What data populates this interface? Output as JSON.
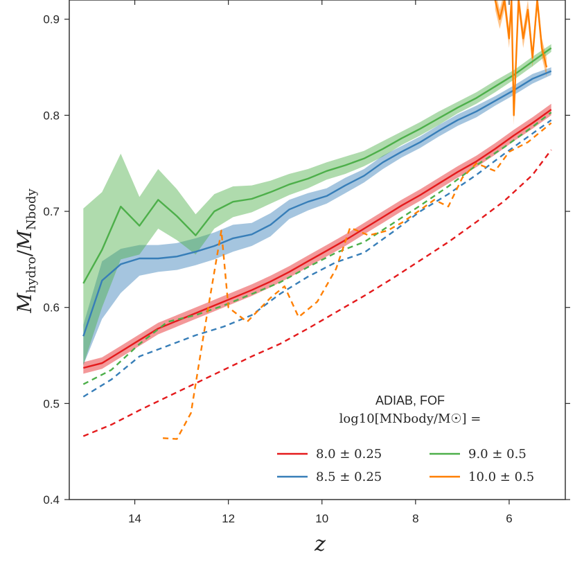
{
  "chart_data": {
    "type": "line",
    "title": "",
    "xlabel": "z",
    "ylabel_main": "M",
    "ylabel_sub1": "hydro",
    "ylabel_slash": "/",
    "ylabel_sub2": "Nbody",
    "xlim": [
      15.4,
      4.8
    ],
    "ylim": [
      0.4,
      0.92
    ],
    "xticks": [
      14,
      12,
      10,
      8,
      6
    ],
    "xtick_labels": [
      "14",
      "12",
      "10",
      "8",
      "6"
    ],
    "yticks": [
      0.4,
      0.5,
      0.6,
      0.7,
      0.8,
      0.9
    ],
    "ytick_labels": [
      "0.4",
      "0.5",
      "0.6",
      "0.7",
      "0.8",
      "0.9"
    ],
    "legend": {
      "position": "lower-right",
      "title_line1": "ADIAB, FOF",
      "title_line2": "log10[MNbody/M☉] =",
      "entries": [
        {
          "label": "8.0 ± 0.25",
          "color": "#e41a1c"
        },
        {
          "label": "9.0 ± 0.5",
          "color": "#4daf4a"
        },
        {
          "label": "8.5 ± 0.25",
          "color": "#377eb8"
        },
        {
          "label": "10.0 ± 0.5",
          "color": "#ff7f00"
        }
      ]
    },
    "series": [
      {
        "name": "8.0 ± 0.25 hydro",
        "color": "#e41a1c",
        "style": "solid",
        "band": 0.006,
        "x": [
          15.1,
          14.7,
          14.3,
          13.9,
          13.5,
          13.1,
          12.7,
          12.3,
          11.9,
          11.5,
          11.1,
          10.7,
          10.3,
          9.9,
          9.5,
          9.1,
          8.7,
          8.3,
          7.9,
          7.5,
          7.1,
          6.7,
          6.3,
          5.9,
          5.5,
          5.1
        ],
        "values": [
          0.537,
          0.542,
          0.554,
          0.566,
          0.578,
          0.586,
          0.594,
          0.602,
          0.61,
          0.618,
          0.627,
          0.637,
          0.648,
          0.659,
          0.67,
          0.682,
          0.694,
          0.706,
          0.717,
          0.729,
          0.741,
          0.752,
          0.765,
          0.779,
          0.792,
          0.806
        ]
      },
      {
        "name": "8.5 ± 0.25 hydro",
        "color": "#377eb8",
        "style": "solid",
        "band_upper": [
          0.012,
          0.02,
          0.016,
          0.014,
          0.014,
          0.014,
          0.014,
          0.014,
          0.014,
          0.012,
          0.012,
          0.01,
          0.009,
          0.008,
          0.008,
          0.007,
          0.007,
          0.006,
          0.006,
          0.006,
          0.006,
          0.006,
          0.005,
          0.005,
          0.005,
          0.004
        ],
        "band_lower": [
          0.03,
          0.04,
          0.03,
          0.018,
          0.014,
          0.014,
          0.014,
          0.014,
          0.014,
          0.012,
          0.012,
          0.01,
          0.009,
          0.008,
          0.008,
          0.007,
          0.007,
          0.006,
          0.006,
          0.006,
          0.006,
          0.006,
          0.005,
          0.005,
          0.005,
          0.004
        ],
        "x": [
          15.1,
          14.7,
          14.3,
          13.9,
          13.5,
          13.1,
          12.7,
          12.3,
          11.9,
          11.5,
          11.1,
          10.7,
          10.3,
          9.9,
          9.5,
          9.1,
          8.7,
          8.3,
          7.9,
          7.5,
          7.1,
          6.7,
          6.3,
          5.9,
          5.5,
          5.1
        ],
        "values": [
          0.57,
          0.628,
          0.645,
          0.651,
          0.651,
          0.653,
          0.658,
          0.664,
          0.672,
          0.676,
          0.686,
          0.702,
          0.71,
          0.716,
          0.727,
          0.737,
          0.751,
          0.762,
          0.772,
          0.784,
          0.795,
          0.804,
          0.815,
          0.826,
          0.838,
          0.846
        ]
      },
      {
        "name": "9.0 ± 0.5 hydro",
        "color": "#4daf4a",
        "style": "solid",
        "band_upper": [
          0.078,
          0.06,
          0.055,
          0.03,
          0.032,
          0.028,
          0.022,
          0.018,
          0.016,
          0.014,
          0.012,
          0.011,
          0.01,
          0.009,
          0.009,
          0.008,
          0.008,
          0.007,
          0.007,
          0.007,
          0.006,
          0.006,
          0.006,
          0.005,
          0.005,
          0.004
        ],
        "band_lower": [
          0.085,
          0.06,
          0.055,
          0.03,
          0.03,
          0.025,
          0.02,
          0.018,
          0.016,
          0.014,
          0.012,
          0.011,
          0.01,
          0.009,
          0.009,
          0.008,
          0.008,
          0.007,
          0.007,
          0.007,
          0.006,
          0.006,
          0.006,
          0.005,
          0.005,
          0.004
        ],
        "x": [
          15.1,
          14.7,
          14.3,
          13.9,
          13.5,
          13.1,
          12.7,
          12.3,
          11.9,
          11.5,
          11.1,
          10.7,
          10.3,
          9.9,
          9.5,
          9.1,
          8.7,
          8.3,
          7.9,
          7.5,
          7.1,
          6.7,
          6.3,
          5.9,
          5.5,
          5.1
        ],
        "values": [
          0.625,
          0.66,
          0.705,
          0.685,
          0.712,
          0.695,
          0.675,
          0.7,
          0.71,
          0.713,
          0.72,
          0.728,
          0.734,
          0.742,
          0.748,
          0.755,
          0.765,
          0.776,
          0.786,
          0.797,
          0.808,
          0.818,
          0.83,
          0.842,
          0.856,
          0.87
        ]
      },
      {
        "name": "10.0 ± 0.5 hydro",
        "color": "#ff7f00",
        "style": "solid",
        "band": 0.01,
        "x": [
          6.3,
          6.2,
          6.1,
          6.0,
          5.95,
          5.9,
          5.8,
          5.7,
          5.6,
          5.5,
          5.4,
          5.3,
          5.2
        ],
        "values": [
          0.92,
          0.9,
          0.92,
          0.88,
          0.92,
          0.8,
          0.92,
          0.88,
          0.91,
          0.86,
          0.92,
          0.87,
          0.85
        ]
      },
      {
        "name": "8.0 ± 0.25 N-body",
        "color": "#e41a1c",
        "style": "dashed",
        "x": [
          15.1,
          14.5,
          13.9,
          13.3,
          12.7,
          12.1,
          11.5,
          10.9,
          10.3,
          9.7,
          9.1,
          8.5,
          7.9,
          7.3,
          6.7,
          6.1,
          5.5,
          5.1
        ],
        "values": [
          0.466,
          0.478,
          0.493,
          0.507,
          0.521,
          0.535,
          0.549,
          0.562,
          0.578,
          0.595,
          0.612,
          0.63,
          0.649,
          0.668,
          0.689,
          0.711,
          0.738,
          0.764
        ]
      },
      {
        "name": "8.5 ± 0.25 N-body",
        "color": "#377eb8",
        "style": "dashed",
        "x": [
          15.1,
          14.5,
          13.9,
          13.3,
          12.7,
          12.1,
          11.5,
          10.9,
          10.3,
          9.7,
          9.1,
          8.5,
          7.9,
          7.3,
          6.7,
          6.1,
          5.5,
          5.1
        ],
        "values": [
          0.507,
          0.525,
          0.549,
          0.56,
          0.571,
          0.58,
          0.592,
          0.614,
          0.632,
          0.647,
          0.657,
          0.678,
          0.7,
          0.718,
          0.738,
          0.76,
          0.781,
          0.795
        ]
      },
      {
        "name": "9.0 ± 0.5 N-body",
        "color": "#4daf4a",
        "style": "dashed",
        "x": [
          15.1,
          14.5,
          13.9,
          13.3,
          12.7,
          12.1,
          11.5,
          10.9,
          10.3,
          9.7,
          9.1,
          8.5,
          7.9,
          7.3,
          6.7,
          6.1,
          5.5,
          5.1
        ],
        "values": [
          0.52,
          0.535,
          0.562,
          0.585,
          0.592,
          0.602,
          0.614,
          0.626,
          0.642,
          0.657,
          0.668,
          0.687,
          0.706,
          0.726,
          0.748,
          0.767,
          0.788,
          0.803
        ]
      },
      {
        "name": "10.0 ± 0.5 N-body",
        "color": "#ff7f00",
        "style": "dashed",
        "x": [
          13.4,
          13.1,
          12.8,
          12.5,
          12.15,
          12.0,
          11.6,
          11.1,
          10.8,
          10.5,
          10.1,
          9.7,
          9.4,
          9.0,
          8.6,
          8.3,
          8.0,
          7.6,
          7.3,
          7.0,
          6.7,
          6.3,
          6.0,
          5.6,
          5.1
        ],
        "values": [
          0.464,
          0.463,
          0.49,
          0.58,
          0.68,
          0.6,
          0.585,
          0.61,
          0.622,
          0.59,
          0.606,
          0.64,
          0.683,
          0.675,
          0.68,
          0.688,
          0.698,
          0.712,
          0.705,
          0.735,
          0.75,
          0.742,
          0.762,
          0.772,
          0.792
        ]
      }
    ]
  }
}
